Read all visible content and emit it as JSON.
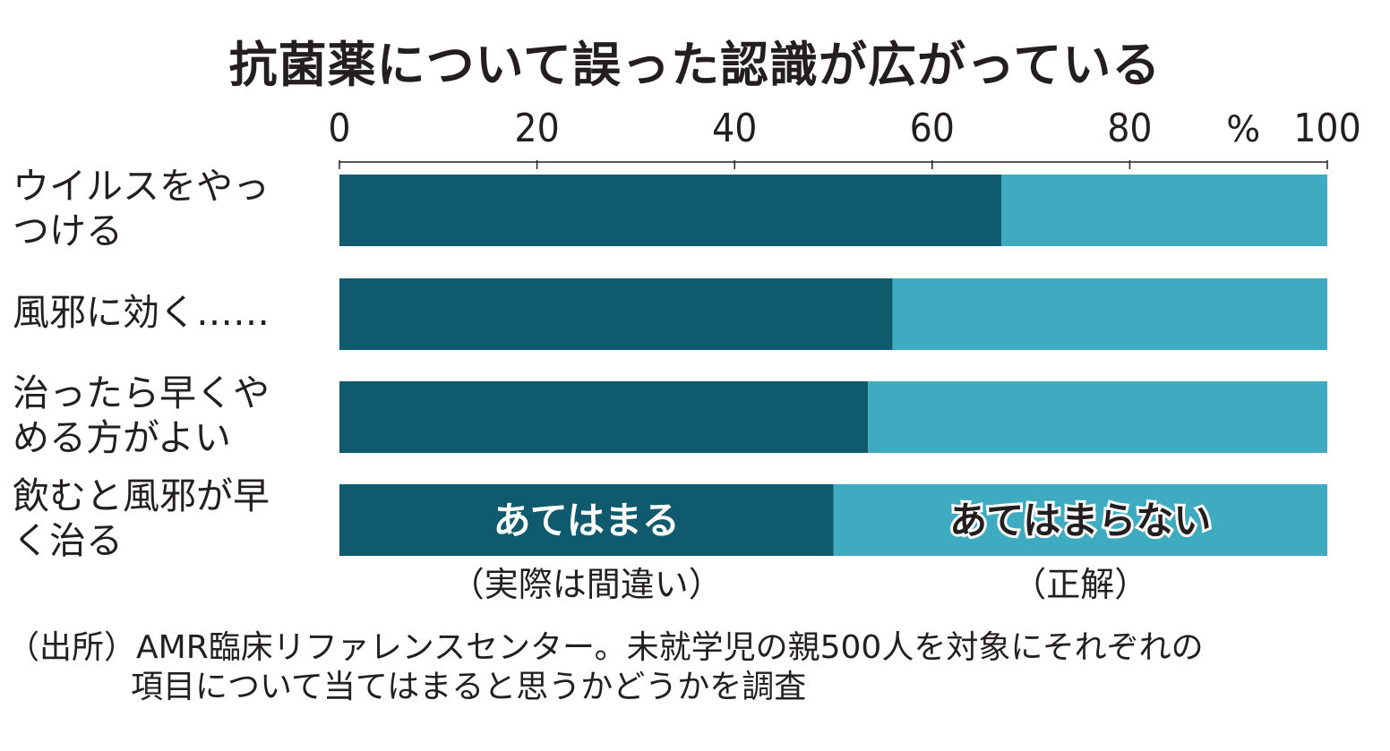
{
  "title": "抗菌薬について誤った認識が広がっている",
  "chart_data": {
    "type": "bar",
    "orientation": "horizontal",
    "stacked": true,
    "unit": "%",
    "xlim": [
      0,
      100
    ],
    "ticks": [
      "0",
      "20",
      "40",
      "60",
      "80",
      "100"
    ],
    "tick_values": [
      0,
      20,
      40,
      60,
      80,
      100
    ],
    "categories": [
      "ウイルスをやっ\nつける",
      "風邪に効く……",
      "治ったら早くや\nめる方がよい",
      "飲むと風邪が早\nく治る"
    ],
    "series": [
      {
        "name": "あてはまる",
        "values": [
          67,
          56,
          53.5,
          50
        ],
        "color": "#0f5a6d"
      },
      {
        "name": "あてはまらない",
        "values": [
          33,
          44,
          46.5,
          50
        ],
        "color": "#3fabc0"
      }
    ],
    "notes": [
      "（実際は間違い）",
      "（正解）"
    ]
  },
  "source": {
    "line1": "（出所）AMR臨床リファレンスセンター。未就学児の親500人を対象にそれぞれの",
    "line2": "項目について当てはまると思うかどうかを調査"
  }
}
